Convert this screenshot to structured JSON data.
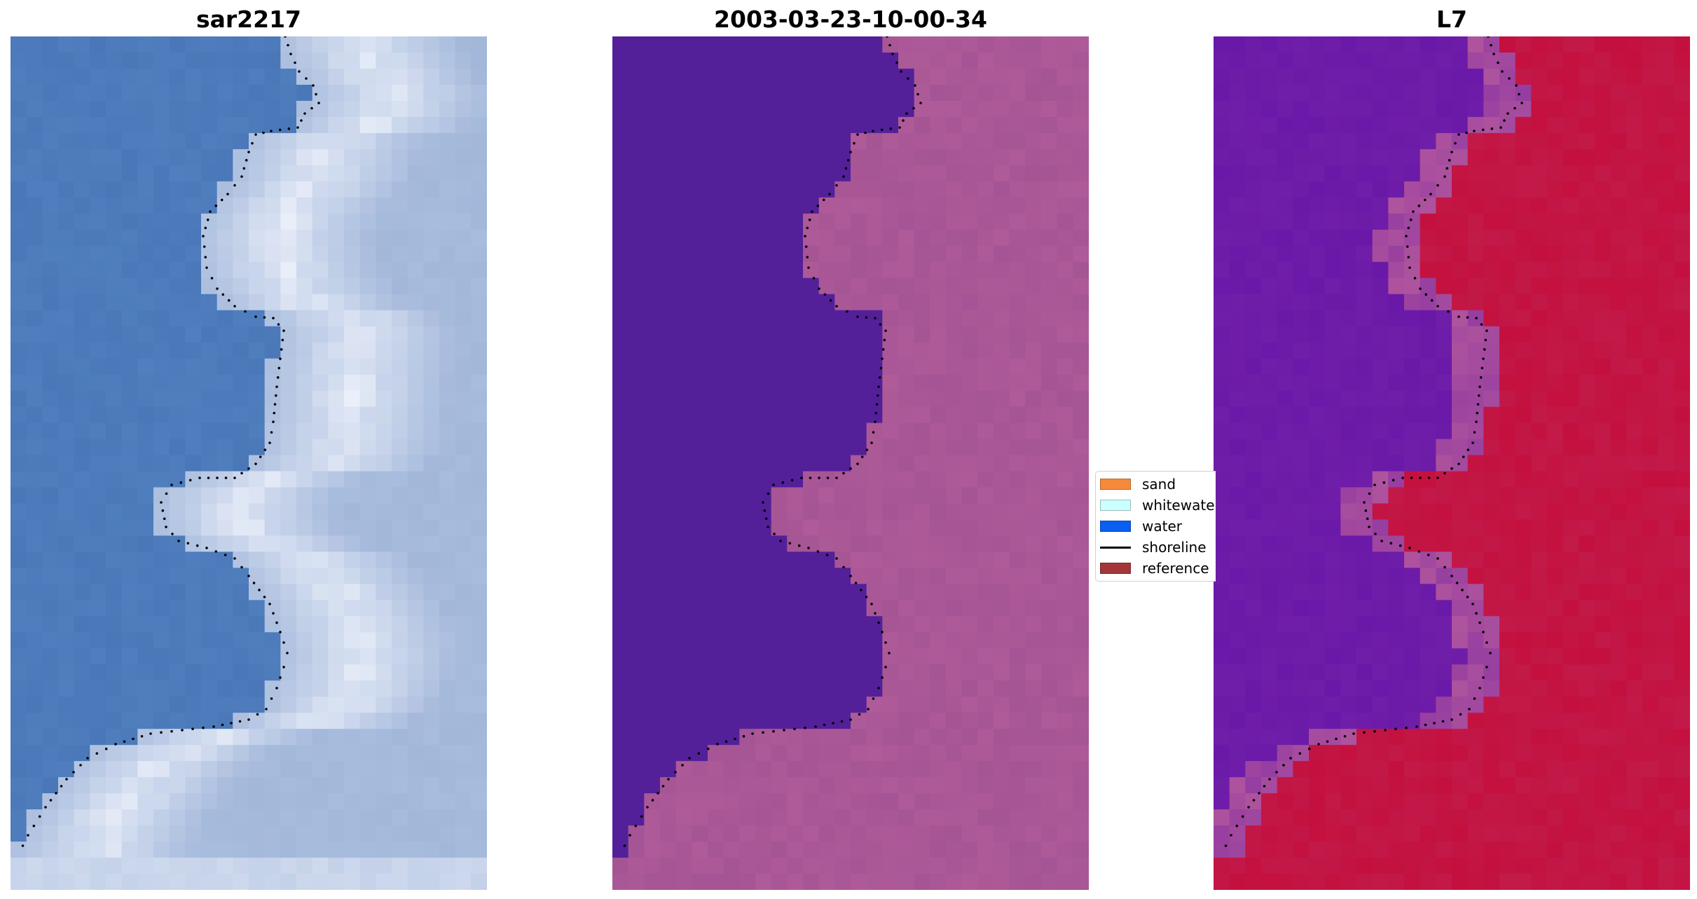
{
  "panels": [
    {
      "title": "sar2217",
      "colormap": "rgb"
    },
    {
      "title": "2003-03-23-10-00-34",
      "colormap": "classified"
    },
    {
      "title": "L7",
      "colormap": "index"
    }
  ],
  "legend": {
    "items": [
      {
        "label": "sand",
        "color": "#f58a3a",
        "kind": "patch"
      },
      {
        "label": "whitewater",
        "color": "#ccffff",
        "kind": "patch"
      },
      {
        "label": "water",
        "color": "#0a5ef0",
        "kind": "patch"
      },
      {
        "label": "shoreline",
        "color": "#000000",
        "kind": "line"
      },
      {
        "label": "reference",
        "color": "#a33638",
        "kind": "patch"
      }
    ]
  },
  "colors": {
    "water_rgb": "#4a77b8",
    "foam_rgb": "#eef2fb",
    "land_rgb": "#a8bcde",
    "class_water": "#53209a",
    "class_land": "#a05192",
    "index_low": "#6a18a8",
    "index_high": "#c4103e",
    "index_edge": "#c0629a"
  }
}
